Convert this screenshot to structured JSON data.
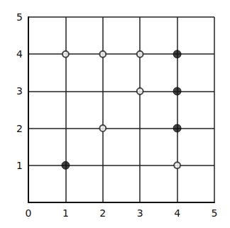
{
  "chart_data": {
    "type": "scatter",
    "xlim": [
      0,
      5
    ],
    "xticks": [
      0,
      1,
      2,
      3,
      4,
      5
    ],
    "ylim": [
      0,
      5
    ],
    "yticks": [
      1,
      2,
      3,
      4,
      5
    ],
    "grid": true,
    "series": [
      {
        "marker": "open",
        "color": "#222222",
        "x": [
          1,
          2,
          3,
          3,
          2,
          4
        ],
        "y": [
          4,
          4,
          4,
          3,
          2,
          1
        ]
      },
      {
        "marker": "filled",
        "color": "#111111",
        "x": [
          4,
          4,
          4,
          1
        ],
        "y": [
          4,
          3,
          2,
          1
        ]
      }
    ]
  }
}
